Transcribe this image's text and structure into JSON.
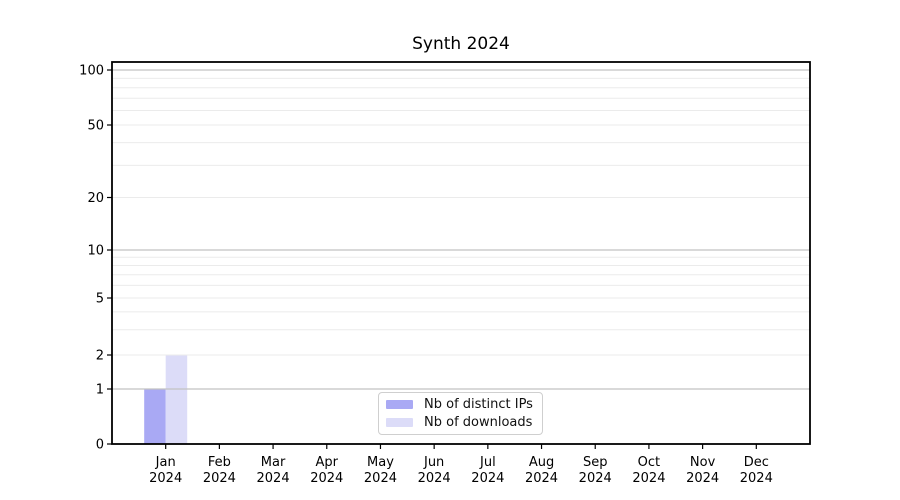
{
  "chart_data": {
    "type": "bar",
    "title": "Synth 2024",
    "x_tick_months": [
      "Jan",
      "Feb",
      "Mar",
      "Apr",
      "May",
      "Jun",
      "Jul",
      "Aug",
      "Sep",
      "Oct",
      "Nov",
      "Dec"
    ],
    "x_tick_year": "2024",
    "yscale": "symlog",
    "ylim": [
      0,
      110
    ],
    "yticks": [
      0,
      1,
      2,
      5,
      10,
      20,
      50,
      100
    ],
    "major_gridlines": [
      1,
      10,
      100
    ],
    "minor_gridlines": [
      2,
      3,
      4,
      5,
      6,
      7,
      8,
      9,
      20,
      30,
      40,
      50,
      60,
      70,
      80,
      90
    ],
    "grid": "on",
    "legend_position": "lower center",
    "colors": {
      "grid_major": "#c2c2c2",
      "grid_minor": "#ebebeb",
      "axis": "#000000",
      "text": "#000000",
      "background": "#ffffff"
    },
    "series": [
      {
        "name": "Nb of distinct IPs",
        "color": "#a9a9f4",
        "values": [
          1,
          0,
          0,
          0,
          0,
          0,
          0,
          0,
          0,
          0,
          0,
          0
        ]
      },
      {
        "name": "Nb of downloads",
        "color": "#dcdcf8",
        "values": [
          2,
          0,
          0,
          0,
          0,
          0,
          0,
          0,
          0,
          0,
          0,
          0
        ]
      }
    ]
  }
}
